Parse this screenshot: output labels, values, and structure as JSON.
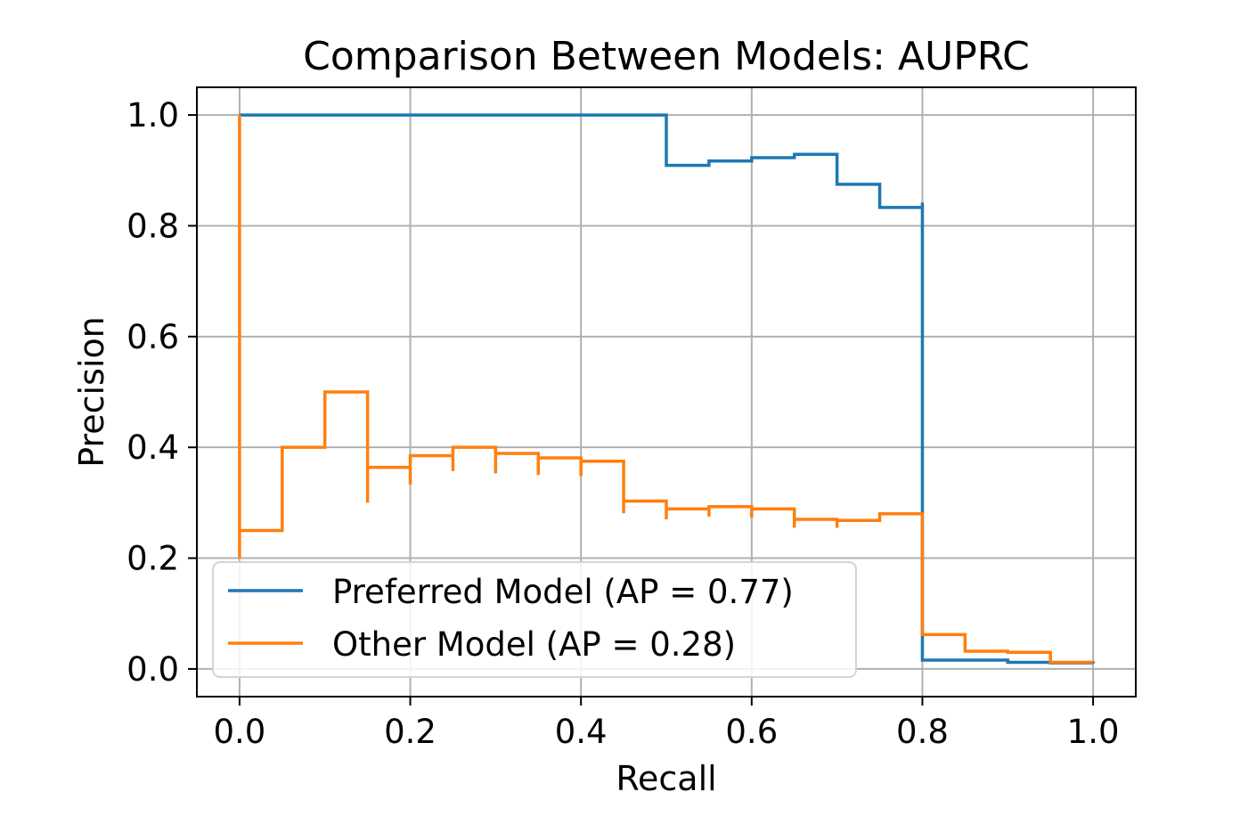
{
  "chart_data": {
    "type": "line",
    "title": "Comparison Between Models: AUPRC",
    "xlabel": "Recall",
    "ylabel": "Precision",
    "xlim": [
      -0.05,
      1.05
    ],
    "ylim": [
      -0.05,
      1.05
    ],
    "xticks": [
      0.0,
      0.2,
      0.4,
      0.6,
      0.8,
      1.0
    ],
    "yticks": [
      0.0,
      0.2,
      0.4,
      0.6,
      0.8,
      1.0
    ],
    "xtick_labels": [
      "0.0",
      "0.2",
      "0.4",
      "0.6",
      "0.8",
      "1.0"
    ],
    "ytick_labels": [
      "0.0",
      "0.2",
      "0.4",
      "0.6",
      "0.8",
      "1.0"
    ],
    "grid": true,
    "legend": "lower-left",
    "step": true,
    "series": [
      {
        "name": "Preferred Model (AP = 0.77)",
        "color": "#1f77b4",
        "points": [
          [
            0.0,
            1.0
          ],
          [
            0.5,
            1.0
          ],
          [
            0.5,
            0.909
          ],
          [
            0.55,
            0.917
          ],
          [
            0.6,
            0.923
          ],
          [
            0.65,
            0.929
          ],
          [
            0.7,
            0.875
          ],
          [
            0.75,
            0.833
          ],
          [
            0.8,
            0.842
          ],
          [
            0.8,
            0.016
          ],
          [
            0.85,
            0.016
          ],
          [
            0.9,
            0.012
          ],
          [
            0.95,
            0.011
          ],
          [
            1.0,
            0.01
          ]
        ]
      },
      {
        "name": "Other Model (AP = 0.28)",
        "color": "#ff7f0e",
        "points": [
          [
            0.0,
            1.0
          ],
          [
            0.0,
            0.2
          ],
          [
            0.0,
            0.25
          ],
          [
            0.05,
            0.4
          ],
          [
            0.1,
            0.5
          ],
          [
            0.15,
            0.3
          ],
          [
            0.15,
            0.364
          ],
          [
            0.2,
            0.333
          ],
          [
            0.2,
            0.385
          ],
          [
            0.25,
            0.357
          ],
          [
            0.25,
            0.4
          ],
          [
            0.3,
            0.353
          ],
          [
            0.3,
            0.389
          ],
          [
            0.35,
            0.35
          ],
          [
            0.35,
            0.381
          ],
          [
            0.4,
            0.348
          ],
          [
            0.4,
            0.375
          ],
          [
            0.45,
            0.281
          ],
          [
            0.45,
            0.303
          ],
          [
            0.5,
            0.27
          ],
          [
            0.5,
            0.289
          ],
          [
            0.55,
            0.275
          ],
          [
            0.55,
            0.293
          ],
          [
            0.6,
            0.273
          ],
          [
            0.6,
            0.289
          ],
          [
            0.65,
            0.255
          ],
          [
            0.65,
            0.27
          ],
          [
            0.7,
            0.255
          ],
          [
            0.7,
            0.268
          ],
          [
            0.75,
            0.268
          ],
          [
            0.75,
            0.28
          ],
          [
            0.8,
            0.28
          ],
          [
            0.8,
            0.062
          ],
          [
            0.85,
            0.032
          ],
          [
            0.9,
            0.03
          ],
          [
            0.95,
            0.012
          ],
          [
            1.0,
            0.012
          ]
        ]
      }
    ]
  }
}
